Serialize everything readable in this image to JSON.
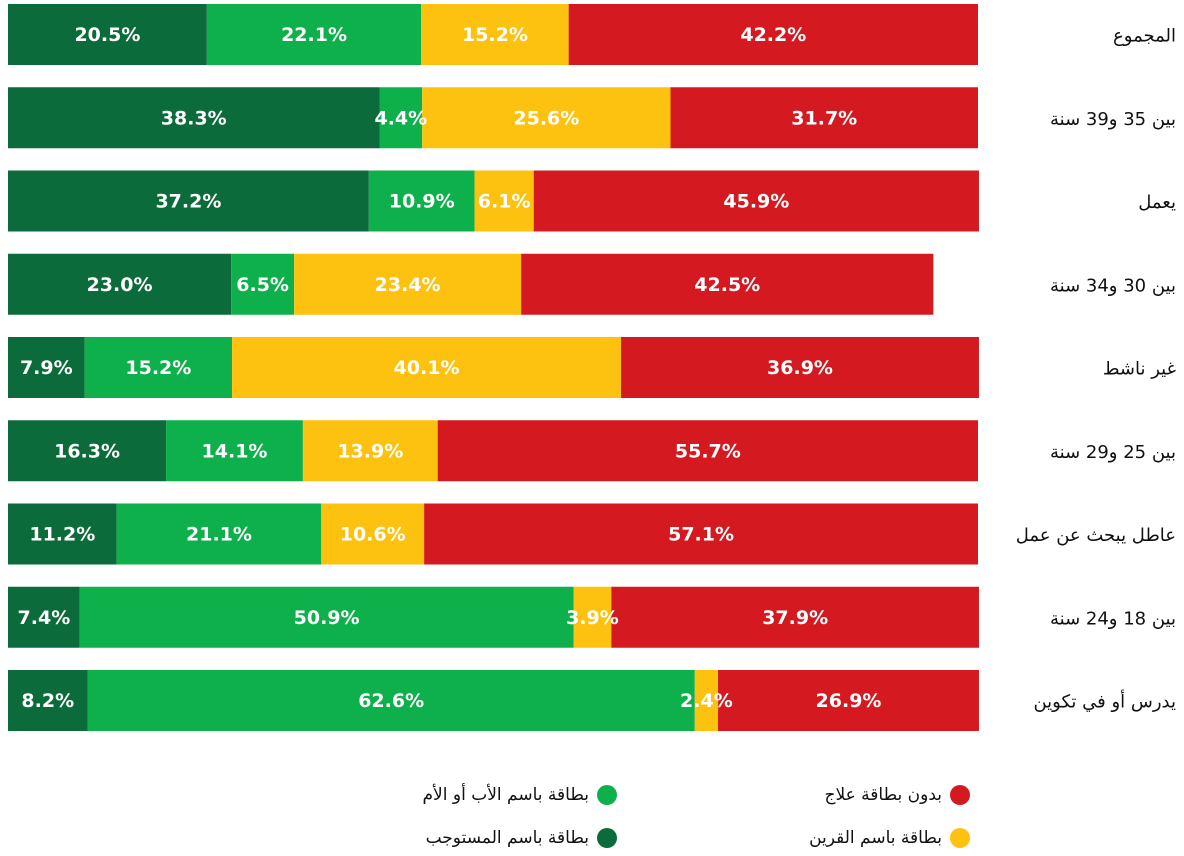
{
  "chart_data": {
    "type": "stacked-bar-horizontal",
    "categories": [
      "المجموع",
      "بين 35 و39 سنة",
      "يعمل",
      "بين 30 و34 سنة",
      "غير ناشط",
      "بين 25 و29 سنة",
      "عاطل يبحث عن عمل",
      "بين 18 و24 سنة",
      "يدرس أو في تكوين"
    ],
    "xlim": [
      0,
      100
    ],
    "series": [
      {
        "name": "بطاقة باسم المستوجب",
        "color": "#0b6b3a",
        "values": [
          20.5,
          38.3,
          37.2,
          23.0,
          7.9,
          16.3,
          11.2,
          7.4,
          8.2
        ],
        "value_labels": [
          "20.5%",
          "38.3%",
          "37.2%",
          "23.0%",
          "7.9%",
          "16.3%",
          "11.2%",
          "7.4%",
          "8.2%"
        ]
      },
      {
        "name": "بطاقة باسم الأب أو الأم",
        "color": "#0db04b",
        "values": [
          22.1,
          4.4,
          10.9,
          6.5,
          15.2,
          14.1,
          21.1,
          50.9,
          62.6
        ],
        "value_labels": [
          "22.1%",
          "4.4%",
          "10.9%",
          "6.5%",
          "15.2%",
          "14.1%",
          "21.1%",
          "50.9%",
          "62.6%"
        ]
      },
      {
        "name": "بطاقة باسم القرين",
        "color": "#fdc20f",
        "values": [
          15.2,
          25.6,
          6.1,
          23.4,
          40.1,
          13.9,
          10.6,
          3.9,
          2.4
        ],
        "value_labels": [
          "15.2%",
          "25.6%",
          "6.1%",
          "23.4%",
          "40.1%",
          "13.9%",
          "10.6%",
          "3.9%",
          "2.4%"
        ]
      },
      {
        "name": "بدون بطاقة علاج",
        "color": "#d41a20",
        "values": [
          42.2,
          31.7,
          45.9,
          42.5,
          36.9,
          55.7,
          57.1,
          37.9,
          26.9
        ],
        "value_labels": [
          "42.2%",
          "31.7%",
          "45.9%",
          "42.5%",
          "36.9%",
          "55.7%",
          "57.1%",
          "37.9%",
          "26.9%"
        ]
      }
    ]
  }
}
